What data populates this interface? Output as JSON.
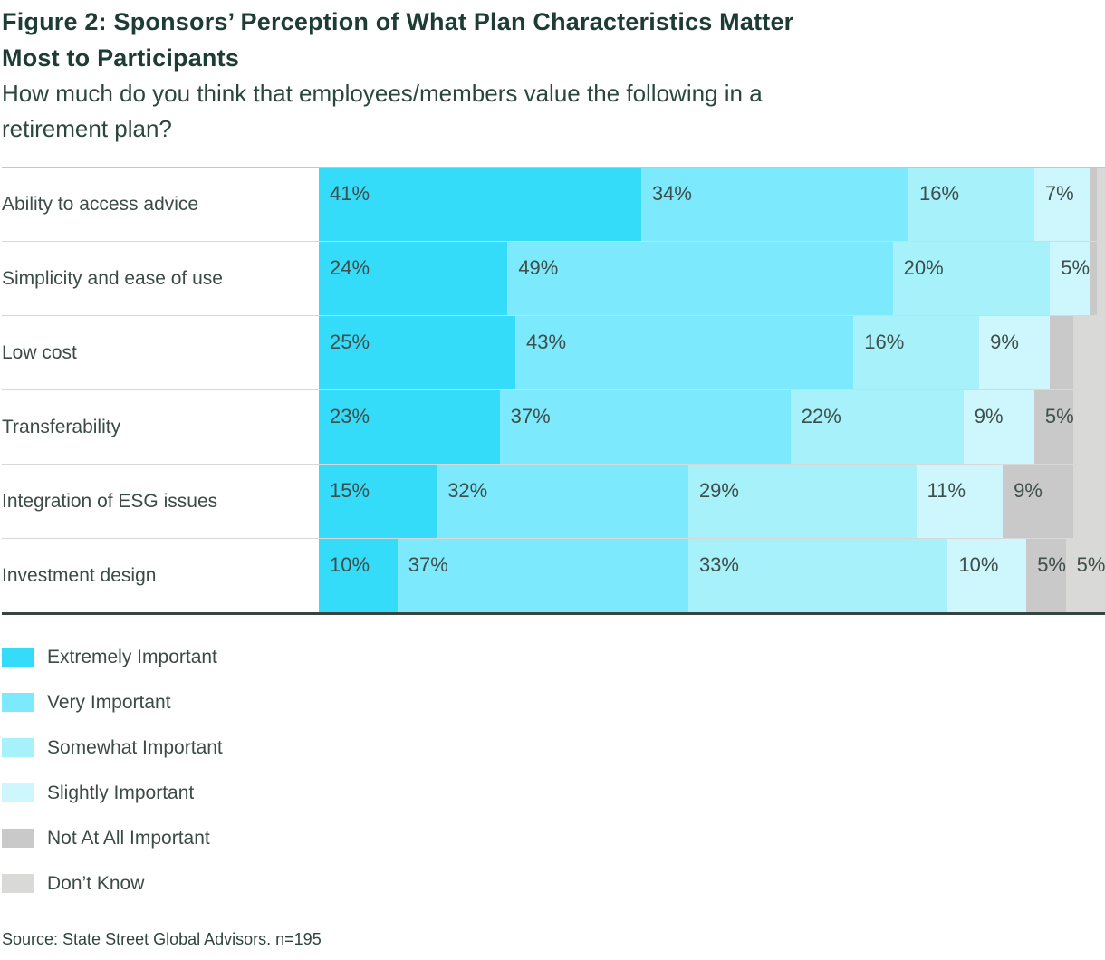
{
  "figure": {
    "title_lines": [
      "Figure 2: Sponsors’ Perception of What Plan Characteristics Matter",
      "Most to Participants"
    ],
    "subtitle_lines": [
      "How much do you think that employees/members value the following in a",
      "retirement plan?"
    ],
    "source": "Source: State Street Global Advisors. n=195"
  },
  "chart_data": {
    "type": "bar",
    "variant": "horizontal-stacked",
    "unit": "percent",
    "axis": {
      "min": 0,
      "max": 100,
      "axis_labels_visible": false,
      "grid": false
    },
    "legend_position": "bottom-left",
    "categories": [
      "Ability to access advice",
      "Simplicity and ease of use",
      "Low cost",
      "Transferability",
      "Integration of ESG issues",
      "Investment design"
    ],
    "series": [
      {
        "name": "Extremely Important",
        "color": "#35dcfa",
        "values": [
          41,
          24,
          25,
          23,
          15,
          10
        ],
        "value_labels": [
          "41%",
          "24%",
          "25%",
          "23%",
          "15%",
          "10%"
        ]
      },
      {
        "name": "Very Important",
        "color": "#7de9fc",
        "values": [
          34,
          49,
          43,
          37,
          32,
          37
        ],
        "value_labels": [
          "34%",
          "49%",
          "43%",
          "37%",
          "32%",
          "37%"
        ]
      },
      {
        "name": "Somewhat Important",
        "color": "#a7f1fb",
        "values": [
          16,
          20,
          16,
          22,
          29,
          33
        ],
        "value_labels": [
          "16%",
          "20%",
          "16%",
          "22%",
          "29%",
          "33%"
        ]
      },
      {
        "name": "Slightly Important",
        "color": "#cdf7fd",
        "values": [
          7,
          5,
          9,
          9,
          11,
          10
        ],
        "value_labels": [
          "7%",
          "5%",
          "9%",
          "9%",
          "11%",
          "10%"
        ]
      },
      {
        "name": "Not At All Important",
        "color": "#c9c9c9",
        "values": [
          1,
          1,
          3,
          5,
          9,
          5
        ],
        "value_labels": [
          "",
          "",
          "",
          "5%",
          "9%",
          "5%"
        ]
      },
      {
        "name": "Don’t Know",
        "color": "#d9d9d7",
        "values": [
          1,
          1,
          4,
          4,
          4,
          5
        ],
        "value_labels": [
          "",
          "",
          "",
          "",
          "",
          "5%"
        ]
      }
    ]
  },
  "colors": {
    "title": "#1d3c34",
    "body_text": "#3c4b47",
    "value_text": "#3e4e4a",
    "table_bottom_border": "#36453f",
    "row_separator": "#d8d8d8",
    "background": "#ffffff"
  }
}
